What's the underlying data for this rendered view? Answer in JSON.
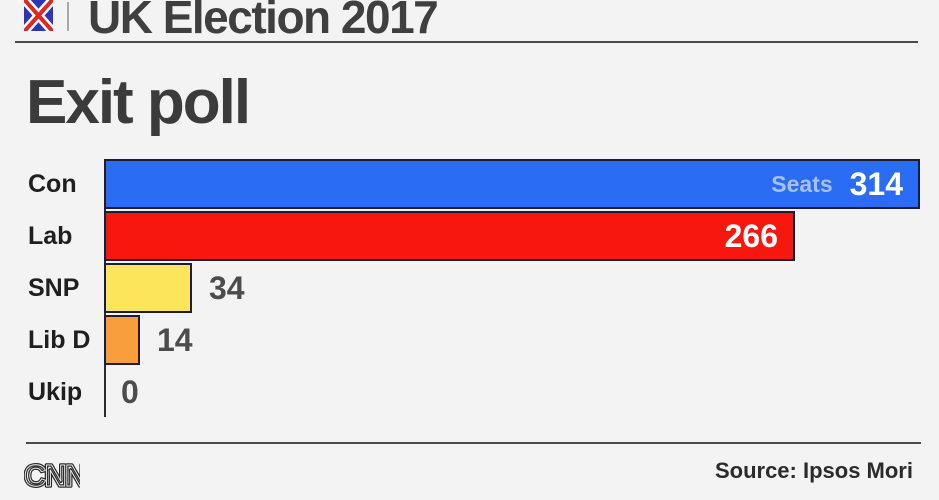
{
  "header": {
    "title": "UK Election 2017",
    "flag_icon": "union-jack-icon"
  },
  "headline": "Exit poll",
  "chart_data": {
    "type": "bar",
    "orientation": "horizontal",
    "title": "Exit poll",
    "categories": [
      "Con",
      "Lab",
      "SNP",
      "Lib D",
      "Ukip"
    ],
    "values": [
      314,
      266,
      34,
      14,
      0
    ],
    "bar_colors": [
      "#2a6cf3",
      "#f7170e",
      "#fbe55a",
      "#f99e3c",
      null
    ],
    "value_label_inside": [
      true,
      true,
      false,
      false,
      false
    ],
    "units_label": "Seats",
    "units_label_on_index": 0,
    "xlim": [
      0,
      314
    ],
    "grid": false,
    "legend": false,
    "xlabel": "",
    "ylabel": ""
  },
  "footer": {
    "logo": "CNN",
    "source": "Source: Ipsos Mori"
  },
  "colors": {
    "background": "#f3f3f3",
    "heading_text": "#3b3b3b",
    "category_text": "#1f1f1f",
    "value_text_outside": "#4c4c4c",
    "value_text_inside": "#ffffff",
    "units_text": "#a5c0f5",
    "bar_border": "#1c1d33",
    "axis": "#2b2b2b",
    "rule": "#4a4a4a",
    "flag_blue": "#2b35b5",
    "flag_red": "#e5231f"
  }
}
